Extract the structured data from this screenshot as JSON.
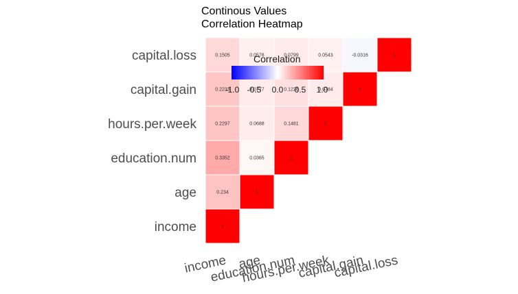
{
  "chart_data": {
    "type": "heatmap",
    "title": "Continous Values",
    "subtitle": "Correlation Heatmap",
    "variables": [
      "income",
      "age",
      "education.num",
      "hours.per.week",
      "capital.gain",
      "capital.loss"
    ],
    "cells": [
      {
        "row": "income",
        "col": "income",
        "value": 1,
        "label": "1"
      },
      {
        "row": "age",
        "col": "income",
        "value": 0.234,
        "label": "0.234"
      },
      {
        "row": "education.num",
        "col": "income",
        "value": 0.3352,
        "label": "0.3352"
      },
      {
        "row": "hours.per.week",
        "col": "income",
        "value": 0.2297,
        "label": "0.2297"
      },
      {
        "row": "capital.gain",
        "col": "income",
        "value": 0.2233,
        "label": "0.2233"
      },
      {
        "row": "capital.loss",
        "col": "income",
        "value": 0.1505,
        "label": "0.1505"
      },
      {
        "row": "age",
        "col": "age",
        "value": 1,
        "label": "1"
      },
      {
        "row": "education.num",
        "col": "age",
        "value": 0.0365,
        "label": "0.0365"
      },
      {
        "row": "hours.per.week",
        "col": "age",
        "value": 0.0688,
        "label": "0.0688"
      },
      {
        "row": "capital.gain",
        "col": "age",
        "value": 0.0777,
        "label": "0.0777"
      },
      {
        "row": "capital.loss",
        "col": "age",
        "value": 0.0578,
        "label": "0.0578"
      },
      {
        "row": "education.num",
        "col": "education.num",
        "value": 1,
        "label": "1"
      },
      {
        "row": "hours.per.week",
        "col": "education.num",
        "value": 0.1481,
        "label": "0.1481"
      },
      {
        "row": "capital.gain",
        "col": "education.num",
        "value": 0.1226,
        "label": "0.1226"
      },
      {
        "row": "capital.loss",
        "col": "education.num",
        "value": 0.0799,
        "label": "0.0799"
      },
      {
        "row": "hours.per.week",
        "col": "hours.per.week",
        "value": 1,
        "label": "1"
      },
      {
        "row": "capital.gain",
        "col": "hours.per.week",
        "value": 0.0784,
        "label": "0.0784"
      },
      {
        "row": "capital.loss",
        "col": "hours.per.week",
        "value": 0.0543,
        "label": "0.0543"
      },
      {
        "row": "capital.gain",
        "col": "capital.gain",
        "value": 1,
        "label": "1"
      },
      {
        "row": "capital.loss",
        "col": "capital.gain",
        "value": -0.0316,
        "label": "-0.0316"
      },
      {
        "row": "capital.loss",
        "col": "capital.loss",
        "value": 1,
        "label": "1"
      }
    ],
    "legend": {
      "title": "Correlation",
      "placement": "top-center",
      "ticks": [
        "-1.0",
        "-0.5",
        "0.0",
        "0.5",
        "1.0"
      ],
      "range": [
        -1,
        1
      ],
      "low_color": "#0000ff",
      "mid_color": "#ffffff",
      "high_color": "#ff0000"
    },
    "grid": false
  }
}
